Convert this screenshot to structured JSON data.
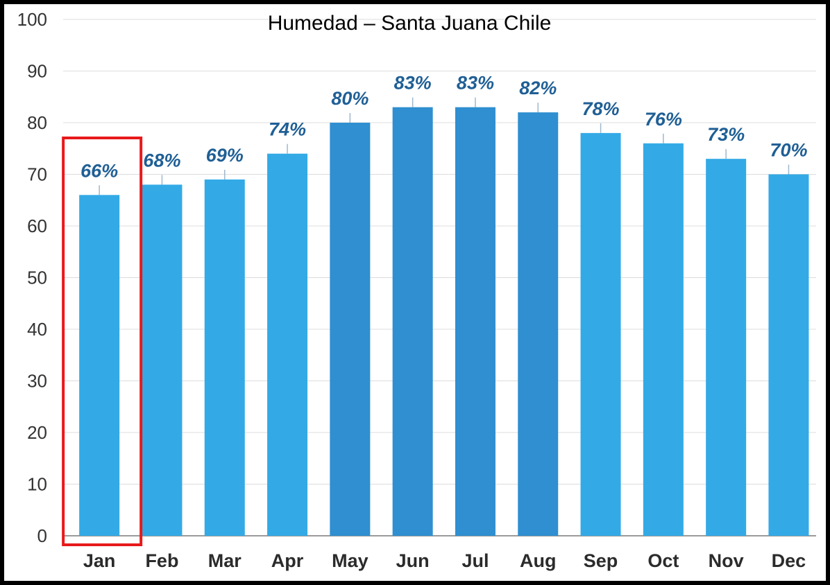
{
  "chart_data": {
    "type": "bar",
    "title": "Humedad – Santa Juana Chile",
    "xlabel": "",
    "ylabel": "",
    "categories": [
      "Jan",
      "Feb",
      "Mar",
      "Apr",
      "May",
      "Jun",
      "Jul",
      "Aug",
      "Sep",
      "Oct",
      "Nov",
      "Dec"
    ],
    "values": [
      66,
      68,
      69,
      74,
      80,
      83,
      83,
      82,
      78,
      76,
      73,
      70
    ],
    "data_labels": [
      "66%",
      "68%",
      "69%",
      "74%",
      "80%",
      "83%",
      "83%",
      "82%",
      "78%",
      "76%",
      "73%",
      "70%"
    ],
    "yticks": [
      "0",
      "10",
      "20",
      "30",
      "40",
      "50",
      "60",
      "70",
      "80",
      "90",
      "100"
    ],
    "ylim": [
      0,
      100
    ],
    "grid": true,
    "legend": "none",
    "highlight": {
      "category": "Jan",
      "color": "#e8191b"
    },
    "colors": {
      "bar_light": "#33aae6",
      "bar_dark": "#2f8fd0",
      "label": "#1f5f95"
    }
  }
}
